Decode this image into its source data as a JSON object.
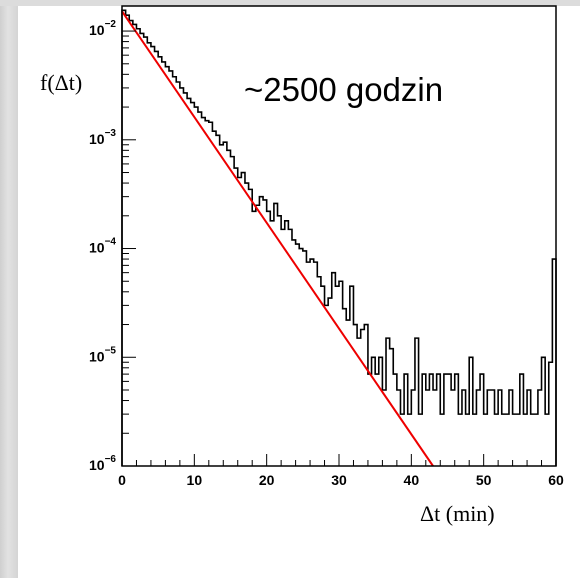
{
  "chart_data": {
    "type": "line",
    "annotation": "~2500 godzin",
    "xlabel": "Δt (min)",
    "ylabel": "f(Δt)",
    "xlim": [
      0,
      60
    ],
    "ylim": [
      1e-06,
      0.017
    ],
    "yscale": "log",
    "grid": false,
    "x_ticks": [
      0,
      10,
      20,
      30,
      40,
      50,
      60
    ],
    "y_ticks": [
      {
        "base": "10",
        "exp": "−2",
        "value": 0.01
      },
      {
        "base": "10",
        "exp": "−3",
        "value": 0.001
      },
      {
        "base": "10",
        "exp": "−4",
        "value": 0.0001
      },
      {
        "base": "10",
        "exp": "−5",
        "value": 1e-05
      },
      {
        "base": "10",
        "exp": "−6",
        "value": 1e-06
      }
    ],
    "series": [
      {
        "kind": "histogram",
        "color": "#000000",
        "bin_width": 0.5,
        "x": [
          0,
          0.5,
          1,
          1.5,
          2,
          2.5,
          3,
          3.5,
          4,
          4.5,
          5,
          5.5,
          6,
          6.5,
          7,
          7.5,
          8,
          8.5,
          9,
          9.5,
          10,
          10.5,
          11,
          11.5,
          12,
          12.5,
          13,
          13.5,
          14,
          14.5,
          15,
          15.5,
          16,
          16.5,
          17,
          17.5,
          18,
          18.5,
          19,
          19.5,
          20,
          20.5,
          21,
          21.5,
          22,
          22.5,
          23,
          23.5,
          24,
          24.5,
          25,
          25.5,
          26,
          26.5,
          27,
          27.5,
          28,
          28.5,
          29,
          29.5,
          30,
          30.5,
          31,
          31.5,
          32,
          32.5,
          33,
          33.5,
          34,
          34.5,
          35,
          35.5,
          36,
          36.5,
          37,
          37.5,
          38,
          38.5,
          39,
          39.5,
          40,
          40.5,
          41,
          41.5,
          42,
          42.5,
          43,
          43.5,
          44,
          44.5,
          45,
          45.5,
          46,
          46.5,
          47,
          47.5,
          48,
          48.5,
          49,
          49.5,
          50,
          50.5,
          51,
          51.5,
          52,
          52.5,
          53,
          53.5,
          54,
          54.5,
          55,
          55.5,
          56,
          56.5,
          57,
          57.5,
          58,
          58.5,
          59,
          59.5
        ],
        "values": [
          0.0155,
          0.014,
          0.0125,
          0.0115,
          0.0105,
          0.0095,
          0.0088,
          0.0078,
          0.0072,
          0.0065,
          0.0058,
          0.0052,
          0.0047,
          0.0043,
          0.0038,
          0.0034,
          0.003,
          0.0027,
          0.0024,
          0.0022,
          0.002,
          0.0018,
          0.0016,
          0.0015,
          0.00145,
          0.0012,
          0.0011,
          0.0009,
          0.00095,
          0.0008,
          0.0007,
          0.00055,
          0.00045,
          0.0005,
          0.0004,
          0.00035,
          0.00022,
          0.00025,
          0.0003,
          0.00028,
          0.00022,
          0.00018,
          0.00026,
          0.0002,
          0.00015,
          0.00018,
          0.00015,
          0.00012,
          0.00011,
          0.0001,
          9.5e-05,
          7.5e-05,
          8e-05,
          7.5e-05,
          5.5e-05,
          4.5e-05,
          3e-05,
          3.5e-05,
          6e-05,
          4.5e-05,
          5e-05,
          2.8e-05,
          2.2e-05,
          4.5e-05,
          2e-05,
          1.5e-05,
          1.8e-05,
          2e-05,
          7e-06,
          1e-05,
          7e-06,
          1e-05,
          5e-06,
          1.5e-05,
          1.2e-05,
          7e-06,
          5e-06,
          3e-06,
          7e-06,
          3e-06,
          5e-06,
          1.5e-05,
          3e-06,
          7e-06,
          5e-06,
          7e-06,
          5e-06,
          7e-06,
          3e-06,
          7e-06,
          7e-06,
          5e-06,
          7e-06,
          3e-06,
          5e-06,
          3e-06,
          1e-05,
          3e-06,
          5e-06,
          7e-06,
          3e-06,
          5e-06,
          5e-06,
          3e-06,
          5e-06,
          3e-06,
          3e-06,
          5e-06,
          3e-06,
          3e-06,
          7e-06,
          3e-06,
          5e-06,
          3e-06,
          3e-06,
          5e-06,
          1e-05,
          3e-06,
          9e-06,
          8e-05
        ]
      },
      {
        "kind": "fit",
        "color": "#ee0000",
        "x": [
          0,
          43
        ],
        "values": [
          0.0152,
          1e-06
        ]
      }
    ]
  }
}
